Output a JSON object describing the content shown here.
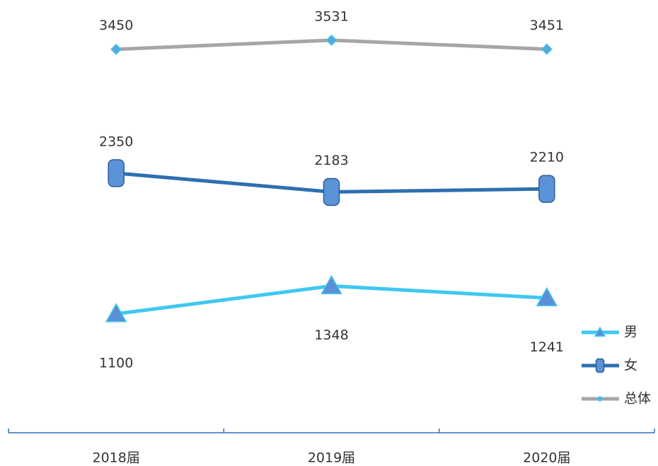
{
  "chart_data": {
    "type": "line",
    "categories": [
      "2018届",
      "2019届",
      "2020届"
    ],
    "series": [
      {
        "name": "男",
        "color": "#3ec8f0",
        "marker": "triangle",
        "values": [
          1100,
          1348,
          1241
        ]
      },
      {
        "name": "女",
        "color": "#2e6fb0",
        "marker": "cylinder",
        "values": [
          2350,
          2183,
          2210
        ]
      },
      {
        "name": "总体",
        "color": "#a6a6a6",
        "marker": "diamond",
        "values": [
          3450,
          3531,
          3451
        ]
      }
    ],
    "ylim": [
      0,
      3800
    ],
    "legend": "right"
  }
}
